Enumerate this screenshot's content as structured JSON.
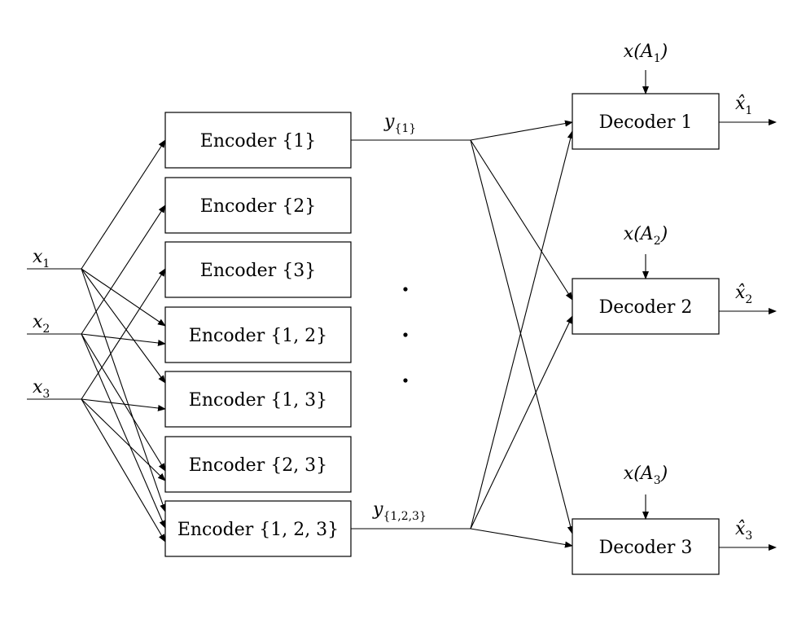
{
  "inputs": [
    {
      "var": "x",
      "sub": "1"
    },
    {
      "var": "x",
      "sub": "2"
    },
    {
      "var": "x",
      "sub": "3"
    }
  ],
  "encoders": [
    {
      "label": "Encoder {1}"
    },
    {
      "label": "Encoder {2}"
    },
    {
      "label": "Encoder {3}"
    },
    {
      "label": "Encoder {1, 2}"
    },
    {
      "label": "Encoder {1, 3}"
    },
    {
      "label": "Encoder {2, 3}"
    },
    {
      "label": "Encoder {1, 2, 3}"
    }
  ],
  "encoder_outputs": [
    {
      "var": "y",
      "sub": "{1}"
    },
    {
      "var": "y",
      "sub": "{1,2,3}"
    }
  ],
  "decoders": [
    {
      "label": "Decoder 1",
      "side_info": "A",
      "side_sub": "1",
      "output": "x̂",
      "output_sub": "1"
    },
    {
      "label": "Decoder 2",
      "side_info": "A",
      "side_sub": "2",
      "output": "x̂",
      "output_sub": "2"
    },
    {
      "label": "Decoder 3",
      "side_info": "A",
      "side_sub": "3",
      "output": "x̂",
      "output_sub": "3"
    }
  ]
}
